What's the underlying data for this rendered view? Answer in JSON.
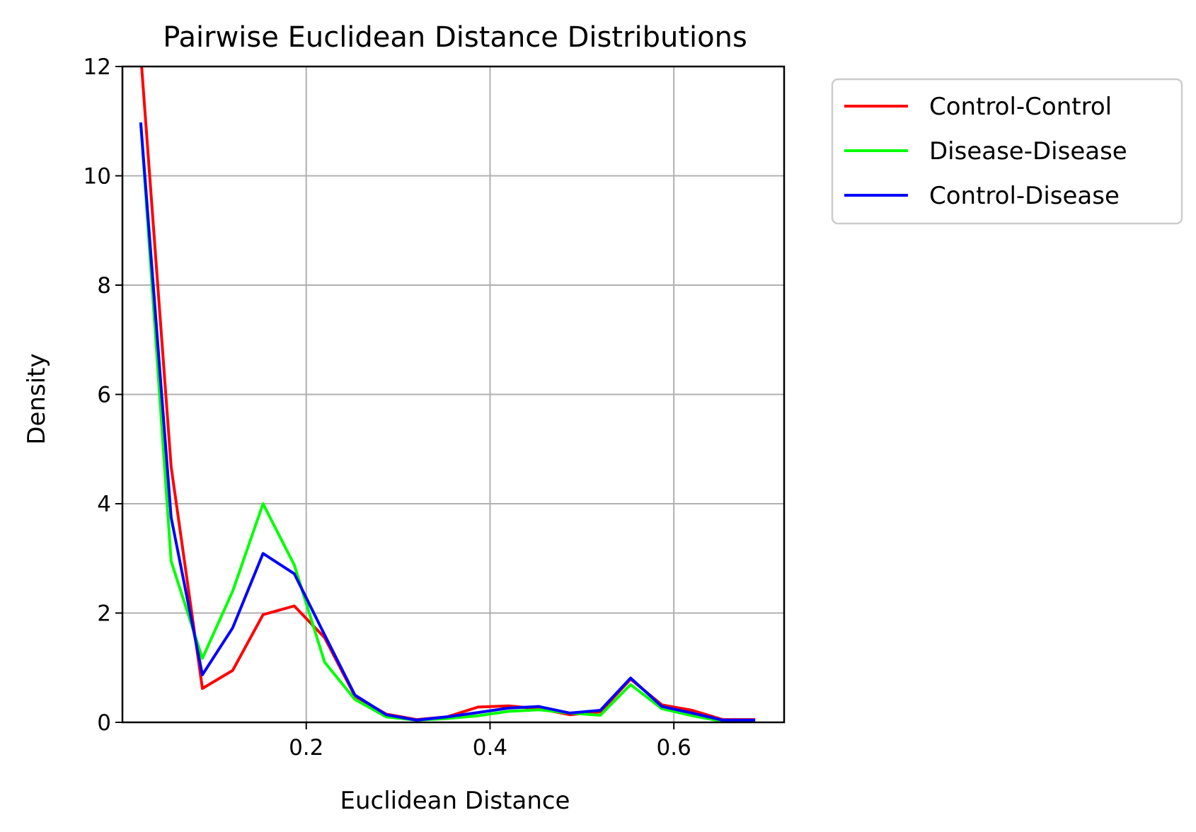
{
  "chart_data": {
    "type": "line",
    "title": "Pairwise Euclidean Distance Distributions",
    "xlabel": "Euclidean Distance",
    "ylabel": "Density",
    "xlim": [
      0.0,
      0.72
    ],
    "ylim": [
      0,
      12
    ],
    "xticks": [
      0.2,
      0.4,
      0.6
    ],
    "xtick_labels": [
      "0.2",
      "0.4",
      "0.6"
    ],
    "yticks": [
      0,
      2,
      4,
      6,
      8,
      10,
      12
    ],
    "ytick_labels": [
      "0",
      "2",
      "4",
      "6",
      "8",
      "10",
      "12"
    ],
    "grid": true,
    "legend_position": "outside upper right",
    "series": [
      {
        "name": "Control-Control",
        "color": "#ff0000",
        "x": [
          0.02,
          0.053,
          0.087,
          0.12,
          0.153,
          0.187,
          0.22,
          0.253,
          0.287,
          0.32,
          0.353,
          0.387,
          0.42,
          0.453,
          0.487,
          0.52,
          0.553,
          0.587,
          0.62,
          0.653,
          0.687
        ],
        "y": [
          12.2,
          4.68,
          0.62,
          0.95,
          1.97,
          2.13,
          1.55,
          0.48,
          0.15,
          0.05,
          0.1,
          0.28,
          0.3,
          0.25,
          0.14,
          0.19,
          0.79,
          0.32,
          0.22,
          0.05,
          0.05
        ]
      },
      {
        "name": "Disease-Disease",
        "color": "#00ff00",
        "x": [
          0.02,
          0.053,
          0.087,
          0.12,
          0.153,
          0.187,
          0.22,
          0.253,
          0.287,
          0.32,
          0.353,
          0.387,
          0.42,
          0.453,
          0.487,
          0.52,
          0.553,
          0.587,
          0.62,
          0.653,
          0.687
        ],
        "y": [
          10.95,
          2.95,
          1.17,
          2.4,
          4.0,
          2.88,
          1.1,
          0.42,
          0.1,
          0.04,
          0.07,
          0.12,
          0.2,
          0.23,
          0.17,
          0.13,
          0.69,
          0.25,
          0.12,
          0.02,
          0.02
        ]
      },
      {
        "name": "Control-Disease",
        "color": "#0000ff",
        "x": [
          0.02,
          0.053,
          0.087,
          0.12,
          0.153,
          0.187,
          0.22,
          0.253,
          0.287,
          0.32,
          0.353,
          0.387,
          0.42,
          0.453,
          0.487,
          0.52,
          0.553,
          0.587,
          0.62,
          0.653,
          0.687
        ],
        "y": [
          10.95,
          3.75,
          0.87,
          1.73,
          3.09,
          2.72,
          1.6,
          0.5,
          0.14,
          0.04,
          0.1,
          0.18,
          0.26,
          0.29,
          0.17,
          0.22,
          0.81,
          0.29,
          0.17,
          0.04,
          0.04
        ]
      }
    ]
  }
}
